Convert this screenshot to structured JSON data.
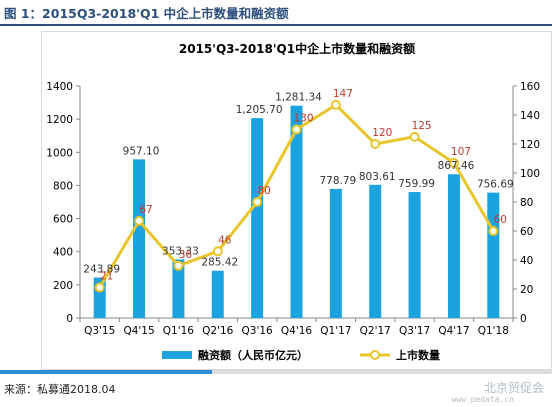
{
  "figure": {
    "label": "图 1：2015Q3-2018'Q1 中企上市数量和融资额",
    "source": "来源：私募通2018.04",
    "watermark": "北京贸促会",
    "watermark_sub": "www.pedata.cn"
  },
  "colors": {
    "bar": "#1aa3de",
    "line": "#e9c52c",
    "count_label": "#c0392b",
    "header": "#2d4f7c"
  },
  "chart_data": {
    "type": "bar+line",
    "title": "2015'Q3-2018'Q1中企上市数量和融资额",
    "categories": [
      "Q3'15",
      "Q4'15",
      "Q1'16",
      "Q2'16",
      "Q3'16",
      "Q4'16",
      "Q1'17",
      "Q2'17",
      "Q3'17",
      "Q4'17",
      "Q1'18"
    ],
    "series": [
      {
        "name": "融资额（人民币亿元）",
        "type": "bar",
        "axis": "left",
        "values": [
          243.89,
          957.1,
          353.33,
          285.42,
          1205.7,
          1281.34,
          778.79,
          803.61,
          759.99,
          867.46,
          756.69
        ],
        "labels": [
          "243.89",
          "957.10",
          "353.33",
          "285.42",
          "1,205.70",
          "1,281.34",
          "778.79",
          "803.61",
          "759.99",
          "867.46",
          "756.69"
        ]
      },
      {
        "name": "上市数量",
        "type": "line",
        "axis": "right",
        "values": [
          21,
          67,
          36,
          46,
          80,
          130,
          147,
          120,
          125,
          107,
          60
        ],
        "labels": [
          "21",
          "67",
          "36",
          "46",
          "80",
          "130",
          "147",
          "120",
          "125",
          "107",
          "60"
        ]
      }
    ],
    "y_left": {
      "range": [
        0,
        1400
      ],
      "ticks": [
        "0",
        "200",
        "400",
        "600",
        "800",
        "1000",
        "1200",
        "1400"
      ]
    },
    "y_right": {
      "range": [
        0,
        160
      ],
      "ticks": [
        "0",
        "20",
        "40",
        "60",
        "80",
        "100",
        "120",
        "140",
        "160"
      ]
    },
    "legend_position": "bottom",
    "grid": false
  }
}
